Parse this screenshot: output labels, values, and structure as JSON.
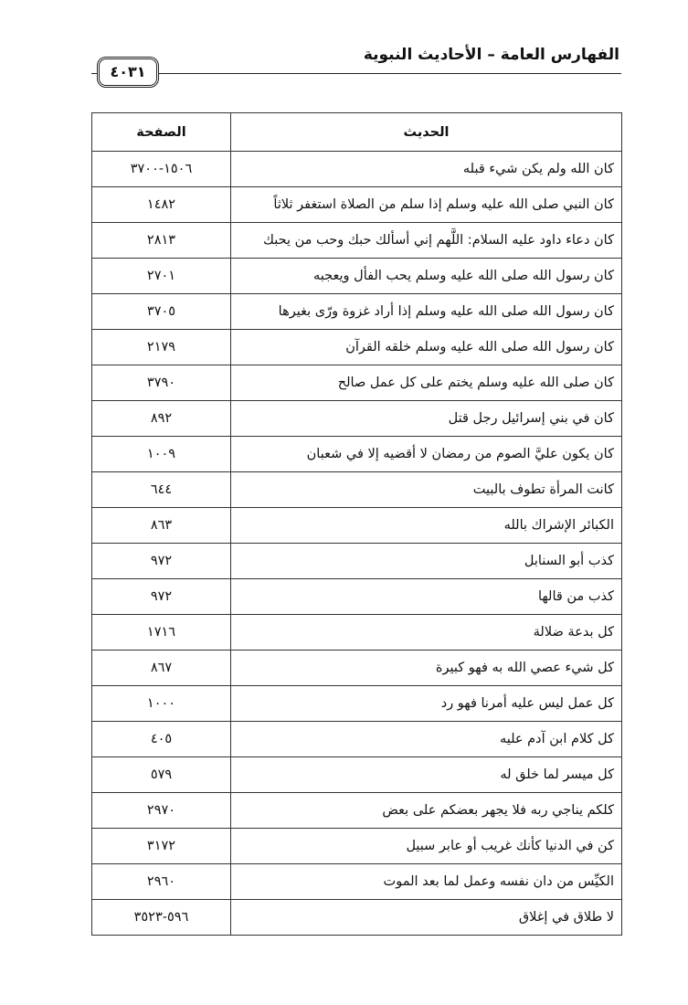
{
  "header": {
    "title": "الفهارس العامة – الأحاديث النبوية",
    "page_number": "٤٠٣١"
  },
  "table": {
    "columns": [
      "الحديث",
      "الصفحة"
    ],
    "rows": [
      [
        "كان الله ولم يكن شيء قبله",
        "١٥٠٦-٣٧٠٠"
      ],
      [
        "كان النبي صلى الله عليه وسلم إذا سلم من الصلاة استغفر ثلاثاً",
        "١٤٨٢"
      ],
      [
        "كان دعاء داود عليه السلام: اللَّهم إني أسألك حبك وحب من يحبك",
        "٢٨١٣"
      ],
      [
        "كان رسول الله صلى الله عليه وسلم يحب الفأل ويعجبه",
        "٢٧٠١"
      ],
      [
        "كان رسول الله صلى الله عليه وسلم إذا أراد غزوة ورّى بغيرها",
        "٣٧٠٥"
      ],
      [
        "كان رسول الله صلى الله عليه وسلم خلقه القرآن",
        "٢١٧٩"
      ],
      [
        "كان صلى الله عليه وسلم يختم على كل عمل صالح",
        "٣٧٩٠"
      ],
      [
        "كان في بني إسرائيل رجل قتل",
        "٨٩٢"
      ],
      [
        "كان يكون عليَّ الصوم من رمضان لا أقضيه إلا في شعبان",
        "١٠٠٩"
      ],
      [
        "كانت المرأة تطوف بالبيت",
        "٦٤٤"
      ],
      [
        "الكبائر الإشراك بالله",
        "٨٦٣"
      ],
      [
        "كذب أبو السنابل",
        "٩٧٢"
      ],
      [
        "كذب من قالها",
        "٩٧٢"
      ],
      [
        "كل بدعة ضلالة",
        "١٧١٦"
      ],
      [
        "كل شيء عصي الله به فهو كبيرة",
        "٨٦٧"
      ],
      [
        "كل عمل ليس عليه أمرنا فهو رد",
        "١٠٠٠"
      ],
      [
        "كل كلام ابن آدم عليه",
        "٤٠٥"
      ],
      [
        "كل ميسر لما خلق له",
        "٥٧٩"
      ],
      [
        "كلكم يناجي ربه فلا يجهر بعضكم على بعض",
        "٢٩٧٠"
      ],
      [
        "كن في الدنيا كأنك غريب أو عابر سبيل",
        "٣١٧٢"
      ],
      [
        "الكيِّس من دان نفسه وعمل لما بعد الموت",
        "٢٩٦٠"
      ],
      [
        "لا طلاق في إغلاق",
        "٥٩٦-٣٥٢٣"
      ]
    ]
  }
}
